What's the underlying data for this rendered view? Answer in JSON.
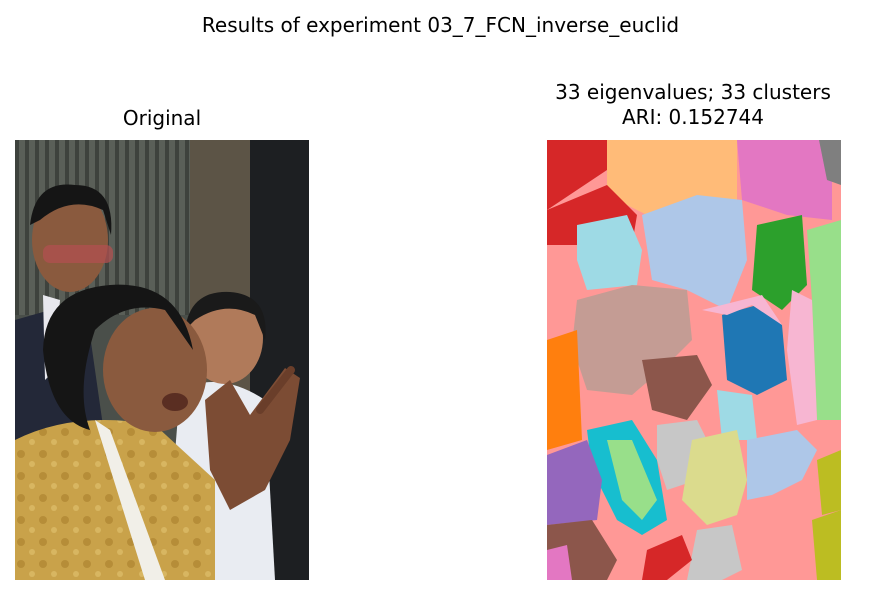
{
  "figure": {
    "suptitle": "Results of experiment 03_7_FCN_inverse_euclid"
  },
  "left_panel": {
    "title": "Original"
  },
  "right_panel": {
    "title_line1": "33 eigenvalues; 33 clusters",
    "title_line2": "ARI: 0.152744"
  },
  "colors": {
    "background_segment": "#ff9896",
    "photo_wall": "#4a4f4a",
    "photo_robe": "#c9a24a",
    "photo_skin": "#8a5a3e",
    "photo_hair": "#151515",
    "photo_suit": "#232838"
  },
  "chart_data": [
    {
      "type": "image",
      "title": "Original"
    },
    {
      "type": "heatmap",
      "title": "33 eigenvalues; 33 clusters\nARI: 0.152744",
      "n_eigenvalues": 33,
      "n_clusters": 33,
      "ari": 0.152744,
      "palette": [
        "#ff9896",
        "#ffbb78",
        "#e377c2",
        "#f7b6d2",
        "#d62728",
        "#aec7e8",
        "#9edae5",
        "#2ca02c",
        "#98df8a",
        "#c49c94",
        "#8c564b",
        "#1f77b4",
        "#ff7f0e",
        "#17becf",
        "#dbdb8d",
        "#c7c7c7",
        "#9467bd",
        "#bcbd22",
        "#7f7f7f"
      ]
    }
  ]
}
